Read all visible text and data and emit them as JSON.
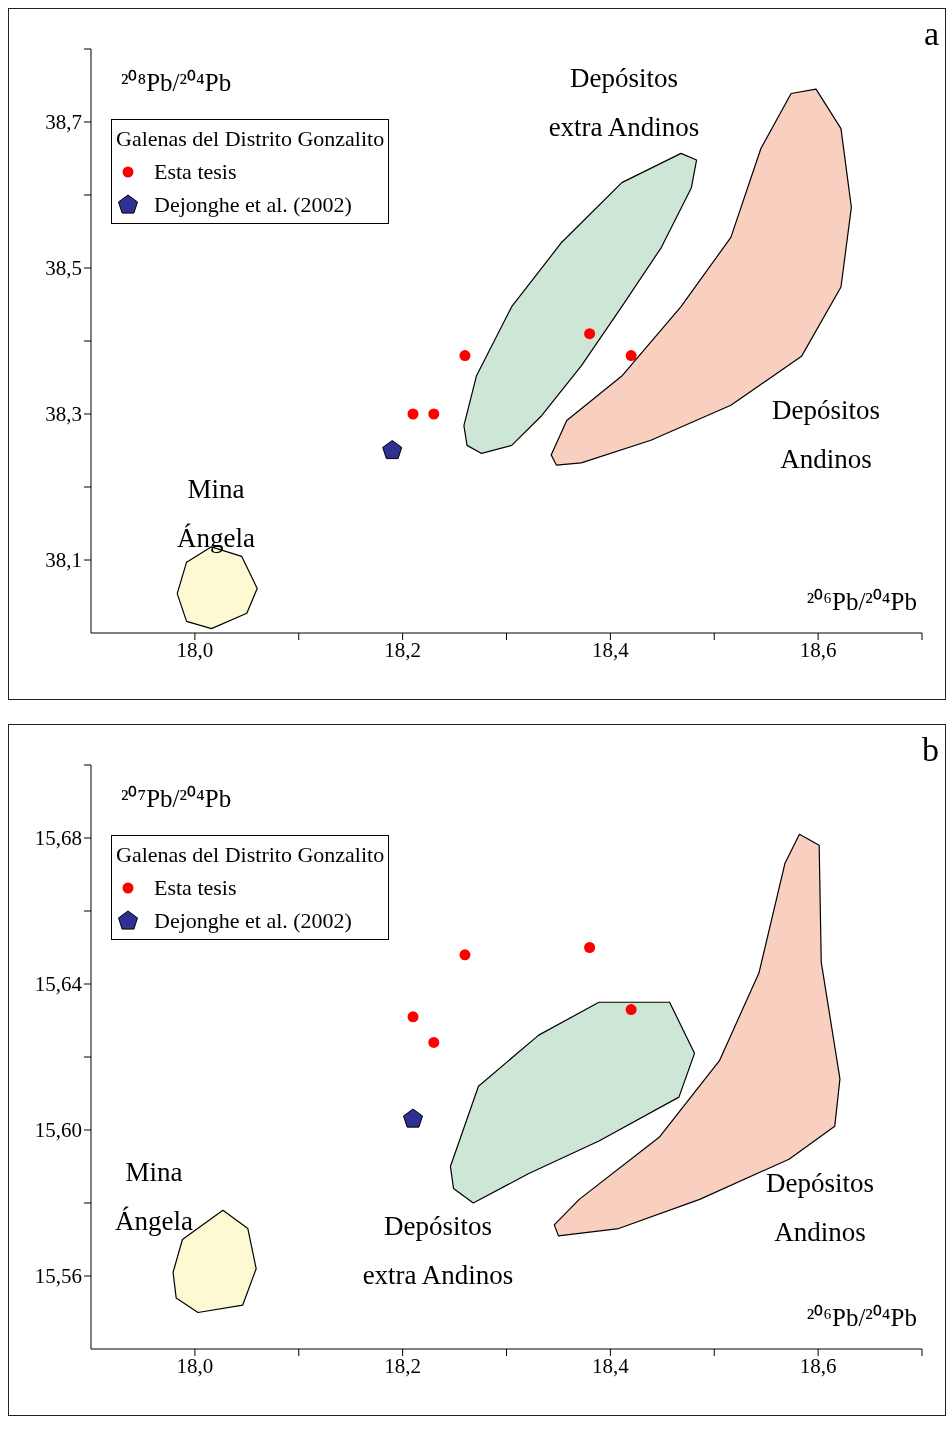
{
  "chart_data": [
    {
      "type": "scatter",
      "xlabel": "²⁰⁶Pb/²⁰⁴Pb",
      "ylabel": "²⁰⁸Pb/²⁰⁴Pb",
      "xlim": [
        17.9,
        18.7
      ],
      "ylim": [
        38.0,
        38.8
      ],
      "xticks": [
        {
          "value": 18.0,
          "label": "18,0"
        },
        {
          "value": 18.1,
          "label": null
        },
        {
          "value": 18.2,
          "label": "18,2"
        },
        {
          "value": 18.3,
          "label": null
        },
        {
          "value": 18.4,
          "label": "18,4"
        },
        {
          "value": 18.5,
          "label": null
        },
        {
          "value": 18.6,
          "label": "18,6"
        },
        {
          "value": 18.7,
          "label": null
        }
      ],
      "yticks": [
        {
          "value": 38.1,
          "label": "38,1"
        },
        {
          "value": 38.2,
          "label": null
        },
        {
          "value": 38.3,
          "label": "38,3"
        },
        {
          "value": 38.4,
          "label": null
        },
        {
          "value": 38.5,
          "label": "38,5"
        },
        {
          "value": 38.6,
          "label": null
        },
        {
          "value": 38.7,
          "label": "38,7"
        },
        {
          "value": 38.8,
          "label": null
        }
      ],
      "legend": "top left",
      "legend_title": "Galenas del Distrito Gonzalito",
      "series": [
        {
          "type": "area",
          "color": "#fdf9d2",
          "x": [
            17.983,
            17.992,
            18.016,
            18.045,
            18.06,
            18.05,
            18.016,
            17.992
          ],
          "values": [
            38.054,
            38.097,
            38.118,
            38.105,
            38.061,
            38.027,
            38.006,
            38.016
          ]
        },
        {
          "type": "area",
          "color": "#cde6d6",
          "x": [
            18.259,
            18.271,
            18.305,
            18.353,
            18.411,
            18.468,
            18.483,
            18.478,
            18.449,
            18.411,
            18.372,
            18.334,
            18.305,
            18.276,
            18.262
          ],
          "values": [
            38.284,
            38.352,
            38.447,
            38.535,
            38.617,
            38.657,
            38.648,
            38.61,
            38.528,
            38.447,
            38.366,
            38.298,
            38.257,
            38.246,
            38.257
          ]
        },
        {
          "type": "area",
          "color": "#f9d0c0",
          "x": [
            18.343,
            18.358,
            18.411,
            18.468,
            18.516,
            18.545,
            18.574,
            18.598,
            18.622,
            18.632,
            18.622,
            18.584,
            18.516,
            18.439,
            18.372,
            18.348
          ],
          "values": [
            38.244,
            38.291,
            38.352,
            38.447,
            38.542,
            38.664,
            38.739,
            38.745,
            38.691,
            38.583,
            38.474,
            38.379,
            38.312,
            38.264,
            38.233,
            38.23
          ]
        },
        {
          "name": "Esta tesis",
          "type": "scatter",
          "marker": "circle",
          "color": "#ff0000",
          "x": [
            18.21,
            18.23,
            18.26,
            18.38,
            18.42
          ],
          "values": [
            38.3,
            38.3,
            38.38,
            38.41,
            38.38
          ]
        },
        {
          "name": "Dejonghe et al. (2002)",
          "type": "scatter",
          "color": "#2e3192",
          "x": [
            18.19
          ],
          "values": [
            38.25
          ]
        }
      ],
      "annotations": [
        "a",
        "Mina Ángela",
        "Depósitos extra Andinos",
        "Depósitos Andinos"
      ]
    },
    {
      "type": "scatter",
      "xlabel": "²⁰⁶Pb/²⁰⁴Pb",
      "ylabel": "²⁰⁷Pb/²⁰⁴Pb",
      "xlim": [
        17.9,
        18.7
      ],
      "ylim": [
        15.54,
        15.7
      ],
      "xticks": [
        {
          "value": 18.0,
          "label": "18,0"
        },
        {
          "value": 18.1,
          "label": null
        },
        {
          "value": 18.2,
          "label": "18,2"
        },
        {
          "value": 18.3,
          "label": null
        },
        {
          "value": 18.4,
          "label": "18,4"
        },
        {
          "value": 18.5,
          "label": null
        },
        {
          "value": 18.6,
          "label": "18,6"
        },
        {
          "value": 18.7,
          "label": null
        }
      ],
      "yticks": [
        {
          "value": 15.56,
          "label": "15,56"
        },
        {
          "value": 15.58,
          "label": null
        },
        {
          "value": 15.6,
          "label": "15,60"
        },
        {
          "value": 15.62,
          "label": null
        },
        {
          "value": 15.64,
          "label": "15,64"
        },
        {
          "value": 15.66,
          "label": null
        },
        {
          "value": 15.68,
          "label": "15,68"
        },
        {
          "value": 15.7,
          "label": null
        }
      ],
      "legend": "top left",
      "legend_title": "Galenas del Distrito Gonzalito",
      "series": [
        {
          "type": "area",
          "color": "#fdf9d2",
          "x": [
            17.979,
            17.988,
            18.027,
            18.051,
            18.059,
            18.046,
            18.003,
            17.982
          ],
          "values": [
            15.561,
            15.57,
            15.578,
            15.573,
            15.562,
            15.552,
            15.55,
            15.554
          ]
        },
        {
          "type": "area",
          "color": "#cde6d6",
          "x": [
            18.246,
            18.273,
            18.331,
            18.389,
            18.457,
            18.481,
            18.466,
            18.389,
            18.321,
            18.268,
            18.249
          ],
          "values": [
            15.59,
            15.612,
            15.626,
            15.635,
            15.635,
            15.621,
            15.609,
            15.597,
            15.588,
            15.58,
            15.584
          ]
        },
        {
          "type": "area",
          "color": "#f9d0c0",
          "x": [
            18.346,
            18.37,
            18.447,
            18.505,
            18.543,
            18.568,
            18.582,
            18.601,
            18.603,
            18.621,
            18.616,
            18.572,
            18.486,
            18.408,
            18.35
          ],
          "values": [
            15.574,
            15.581,
            15.598,
            15.619,
            15.643,
            15.673,
            15.681,
            15.678,
            15.646,
            15.614,
            15.601,
            15.592,
            15.581,
            15.573,
            15.571
          ]
        },
        {
          "name": "Esta tesis",
          "type": "scatter",
          "marker": "circle",
          "color": "#ff0000",
          "x": [
            18.21,
            18.23,
            18.26,
            18.38,
            18.42
          ],
          "values": [
            15.631,
            15.624,
            15.648,
            15.65,
            15.633
          ]
        },
        {
          "name": "Dejonghe et al. (2002)",
          "type": "scatter",
          "color": "#2e3192",
          "x": [
            18.21
          ],
          "values": [
            15.603
          ]
        }
      ],
      "annotations": [
        "b",
        "Mina Ángela",
        "Depósitos extra Andinos",
        "Depósitos Andinos"
      ]
    }
  ]
}
